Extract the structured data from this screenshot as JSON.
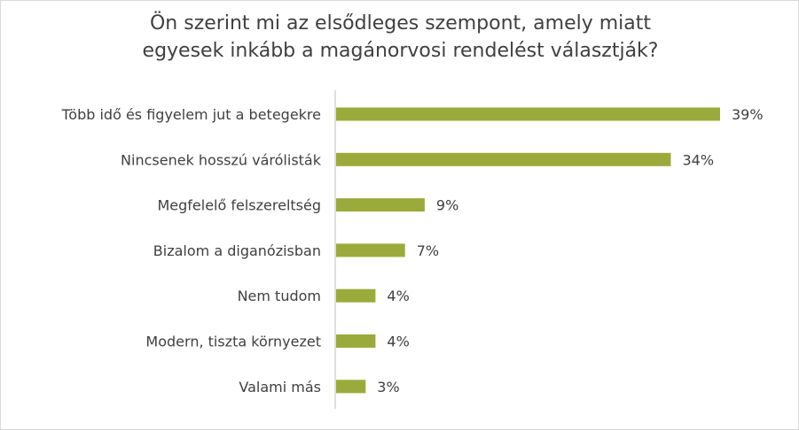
{
  "chart_data": {
    "type": "bar",
    "orientation": "horizontal",
    "title_lines": [
      "Ön szerint mi az elsődleges szempont, amely miatt",
      "egyesek inkább a magánorvosi rendelést választják?"
    ],
    "categories": [
      "Több idő és figyelem jut a betegekre",
      "Nincsenek hosszú várólisták",
      "Megfelelő felszereltség",
      "Bizalom a diganózisban",
      "Nem tudom",
      "Modern, tiszta környezet",
      "Valami más"
    ],
    "values": [
      39,
      34,
      9,
      7,
      4,
      4,
      3
    ],
    "value_labels": [
      "39%",
      "34%",
      "9%",
      "7%",
      "4%",
      "4%",
      "3%"
    ],
    "xlim": [
      0,
      39
    ],
    "grid": false,
    "legend": "none",
    "colors": {
      "bar": "#9aab3b",
      "axis": "#bfbfbf",
      "text": "#404040"
    }
  }
}
